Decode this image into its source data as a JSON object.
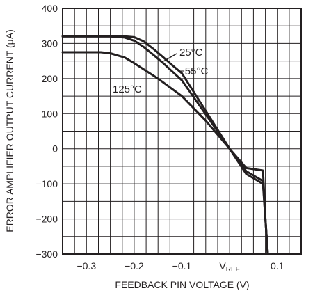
{
  "chart_data": {
    "type": "line",
    "xlabel": "FEEDBACK PIN VOLTAGE (V)",
    "ylabel": "ERROR AMPLIFIER OUTPUT CURRENT (μA)",
    "xlim": [
      -0.35,
      0.15
    ],
    "ylim": [
      -300,
      400
    ],
    "x_ticks": [
      {
        "value": -0.3,
        "label": "−0.3"
      },
      {
        "value": -0.2,
        "label": "−0.2"
      },
      {
        "value": -0.1,
        "label": "−0.1"
      },
      {
        "value": 0.0,
        "label": "V",
        "label_sub": "REF"
      },
      {
        "value": 0.1,
        "label": "0.1"
      }
    ],
    "y_ticks": [
      {
        "value": 400,
        "label": "400"
      },
      {
        "value": 300,
        "label": "300"
      },
      {
        "value": 200,
        "label": "200"
      },
      {
        "value": 100,
        "label": "100"
      },
      {
        "value": 0,
        "label": "0"
      },
      {
        "value": -100,
        "label": "−100"
      },
      {
        "value": -200,
        "label": "−200"
      },
      {
        "value": -300,
        "label": "−300"
      }
    ],
    "grid": true,
    "series": [
      {
        "name": "25°C",
        "x": [
          -0.35,
          -0.22,
          -0.2,
          -0.18,
          -0.16,
          -0.14,
          -0.12,
          -0.1,
          -0.05,
          0.0,
          0.035,
          0.07,
          0.075,
          0.08
        ],
        "y": [
          320,
          320,
          318,
          306,
          285,
          262,
          238,
          215,
          108,
          0,
          -72,
          -100,
          -200,
          -300
        ]
      },
      {
        "name": "−55°C",
        "x": [
          -0.35,
          -0.25,
          -0.22,
          -0.2,
          -0.18,
          -0.16,
          -0.14,
          -0.12,
          -0.1,
          -0.05,
          0.0,
          0.035,
          0.07,
          0.075,
          0.08
        ],
        "y": [
          320,
          320,
          317,
          308,
          290,
          268,
          245,
          220,
          195,
          98,
          0,
          -64,
          -92,
          -200,
          -300
        ]
      },
      {
        "name": "125°C",
        "x": [
          -0.35,
          -0.27,
          -0.25,
          -0.22,
          -0.2,
          -0.15,
          -0.1,
          -0.05,
          0.0,
          0.035,
          0.07,
          0.075,
          0.08
        ],
        "y": [
          275,
          275,
          272,
          260,
          244,
          200,
          150,
          80,
          0,
          -55,
          -62,
          -200,
          -300
        ]
      }
    ],
    "annotations": [
      {
        "text": "25°C",
        "series": "25°C"
      },
      {
        "text": "−55°C",
        "series": "−55°C"
      },
      {
        "text": "125°C",
        "series": "125°C"
      }
    ]
  }
}
